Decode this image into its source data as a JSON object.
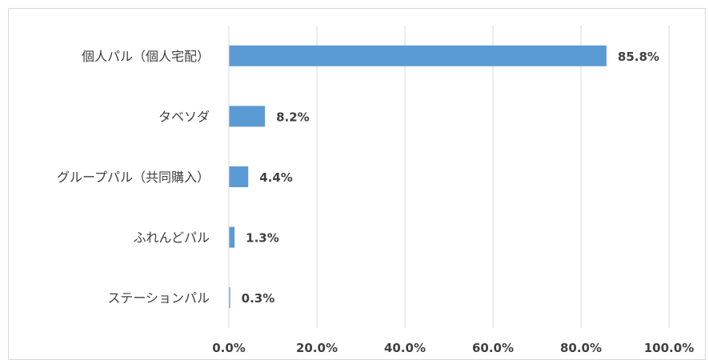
{
  "chart_data": {
    "type": "bar",
    "orientation": "horizontal",
    "categories": [
      "個人パル（個人宅配）",
      "タベソダ",
      "グループパル（共同購入）",
      "ふれんどパル",
      "ステーションパル"
    ],
    "values": [
      85.8,
      8.2,
      4.4,
      1.3,
      0.3
    ],
    "value_labels": [
      "85.8%",
      "8.2%",
      "4.4%",
      "1.3%",
      "0.3%"
    ],
    "xlim": [
      0,
      100
    ],
    "xticks": [
      0,
      20,
      40,
      60,
      80,
      100
    ],
    "xtick_labels": [
      "0.0%",
      "20.0%",
      "40.0%",
      "60.0%",
      "80.0%",
      "100.0%"
    ],
    "grid": "vertical",
    "legend": "none",
    "bar_color": "#5b9bd5",
    "grid_color": "#d9d9d9"
  }
}
